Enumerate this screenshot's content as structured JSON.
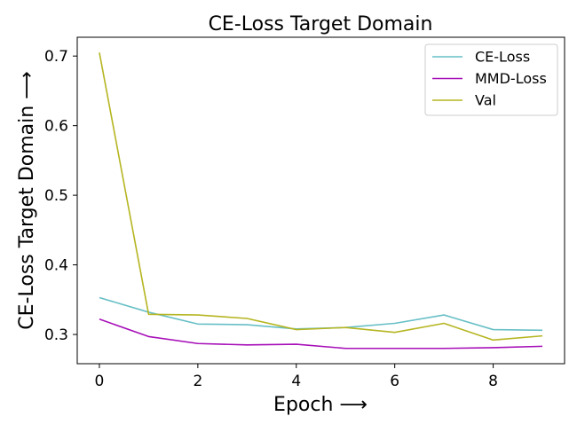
{
  "chart_data": {
    "type": "line",
    "title": "CE-Loss Target Domain",
    "xlabel": "Epoch ⟶",
    "ylabel": "CE-Loss Target Domain ⟶",
    "x": [
      0,
      1,
      2,
      3,
      4,
      5,
      6,
      7,
      8,
      9
    ],
    "xlim": [
      -0.45,
      9.45
    ],
    "ylim": [
      0.258,
      0.727
    ],
    "xticks": [
      0,
      2,
      4,
      6,
      8
    ],
    "yticks": [
      0.3,
      0.4,
      0.5,
      0.6,
      0.7
    ],
    "xtick_labels": [
      "0",
      "2",
      "4",
      "6",
      "8"
    ],
    "ytick_labels": [
      "0.3",
      "0.4",
      "0.5",
      "0.6",
      "0.7"
    ],
    "legend_position": "top-right",
    "grid": false,
    "series": [
      {
        "name": "CE-Loss",
        "color": "#67bfc6",
        "values": [
          0.353,
          0.332,
          0.315,
          0.314,
          0.308,
          0.31,
          0.316,
          0.328,
          0.307,
          0.306
        ]
      },
      {
        "name": "MMD-Loss",
        "color": "#a70fb8",
        "values": [
          0.322,
          0.297,
          0.287,
          0.285,
          0.286,
          0.28,
          0.28,
          0.28,
          0.281,
          0.283
        ]
      },
      {
        "name": "Val",
        "color": "#b5b521",
        "values": [
          0.705,
          0.329,
          0.328,
          0.323,
          0.307,
          0.31,
          0.303,
          0.316,
          0.292,
          0.298
        ]
      }
    ]
  }
}
